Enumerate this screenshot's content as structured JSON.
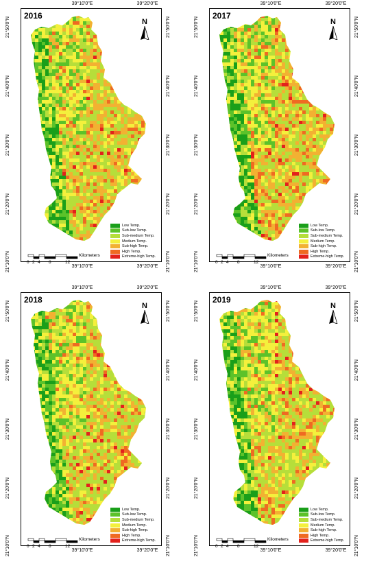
{
  "colors": {
    "low": "#1a9f1a",
    "sublow": "#5cc22a",
    "submedium": "#b6de3a",
    "medium": "#f4f03c",
    "subhigh": "#f2b132",
    "high": "#ef6a22",
    "extreme": "#e3211c"
  },
  "panels": [
    {
      "year": "2016"
    },
    {
      "year": "2017"
    },
    {
      "year": "2018"
    },
    {
      "year": "2019"
    }
  ],
  "axes": {
    "top_ticks": [
      "39°10'0\"E",
      "39°20'0\"E"
    ],
    "bottom_ticks": [
      "39°10'0\"E",
      "39°20'0\"E"
    ],
    "left_ticks": [
      "21°50'0\"N",
      "21°40'0\"N",
      "21°30'0\"N",
      "21°20'0\"N",
      "21°10'0\"N"
    ],
    "right_ticks": [
      "21°50'0\"N",
      "21°40'0\"N",
      "21°30'0\"N",
      "21°20'0\"N",
      "21°10'0\"N"
    ]
  },
  "north_label": "N",
  "legend": [
    {
      "label": "Low Temp.",
      "key": "low"
    },
    {
      "label": "Sub-low Temp.",
      "key": "sublow"
    },
    {
      "label": "Sub-medium Temp.",
      "key": "submedium"
    },
    {
      "label": "Medium Temp.",
      "key": "medium"
    },
    {
      "label": "Sub-high Temp.",
      "key": "subhigh"
    },
    {
      "label": "High Temp.",
      "key": "high"
    },
    {
      "label": "Extreme-high Temp.",
      "key": "extreme"
    }
  ],
  "scalebar": {
    "labels": [
      "0",
      "2",
      "4",
      "8",
      "12"
    ],
    "unit": "Kilometers"
  }
}
